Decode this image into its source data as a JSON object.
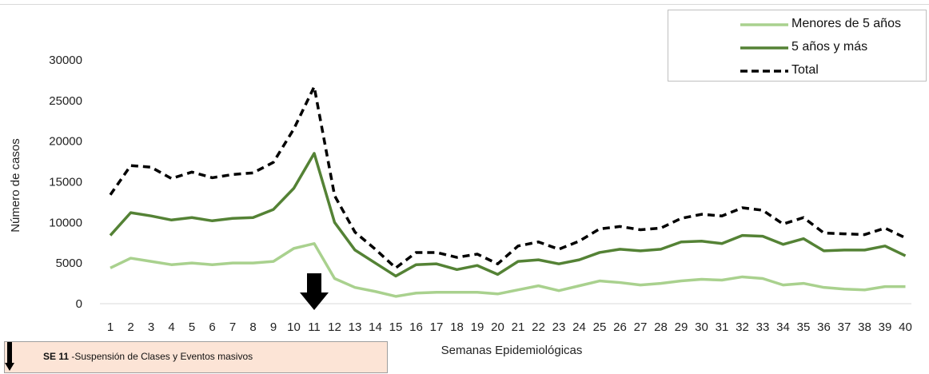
{
  "chart_data": {
    "type": "line",
    "title": "",
    "xlabel": "Semanas  Epidemiológicas",
    "ylabel": "Número de casos",
    "ylim": [
      0,
      30000
    ],
    "yticks": [
      "0",
      "5000",
      "10000",
      "15000",
      "20000",
      "25000",
      "30000"
    ],
    "x": [
      1,
      2,
      3,
      4,
      5,
      6,
      7,
      8,
      9,
      10,
      11,
      12,
      13,
      14,
      15,
      16,
      17,
      18,
      19,
      20,
      21,
      22,
      23,
      24,
      25,
      26,
      27,
      28,
      29,
      30,
      31,
      32,
      33,
      34,
      35,
      36,
      37,
      38,
      39,
      40
    ],
    "grid": false,
    "legend_position": "top-right",
    "series": [
      {
        "name": "Menores de 5 años",
        "color": "#a9d18e",
        "style": "solid",
        "values": [
          4400,
          5600,
          5200,
          4800,
          5000,
          4800,
          5000,
          5000,
          5200,
          6800,
          7400,
          3100,
          2000,
          1500,
          900,
          1300,
          1400,
          1400,
          1400,
          1200,
          1700,
          2200,
          1600,
          2200,
          2800,
          2600,
          2300,
          2500,
          2800,
          3000,
          2900,
          3300,
          3100,
          2300,
          2500,
          2000,
          1800,
          1700,
          2100,
          2100
        ]
      },
      {
        "name": "5 años y más",
        "color": "#548235",
        "style": "solid",
        "values": [
          8400,
          11200,
          10800,
          10300,
          10600,
          10200,
          10500,
          10600,
          11600,
          14200,
          18500,
          10000,
          6600,
          5000,
          3400,
          4800,
          4900,
          4200,
          4700,
          3600,
          5200,
          5400,
          4900,
          5400,
          6300,
          6700,
          6500,
          6700,
          7600,
          7700,
          7400,
          8400,
          8300,
          7300,
          8000,
          6500,
          6600,
          6600,
          7100,
          5900
        ]
      },
      {
        "name": "Total",
        "color": "#000000",
        "style": "dashed",
        "values": [
          13400,
          17000,
          16800,
          15400,
          16200,
          15500,
          15900,
          16100,
          17400,
          21500,
          26700,
          13300,
          8800,
          6700,
          4400,
          6300,
          6300,
          5700,
          6100,
          4900,
          7100,
          7600,
          6700,
          7700,
          9200,
          9500,
          9100,
          9300,
          10500,
          11000,
          10800,
          11800,
          11500,
          9800,
          10600,
          8700,
          8600,
          8500,
          9300,
          8100
        ]
      }
    ],
    "annotation": {
      "arrow_at_week": 11
    }
  },
  "note": {
    "bold": "SE 11",
    "text": " -Suspensión de Clases  y Eventos masivos"
  }
}
